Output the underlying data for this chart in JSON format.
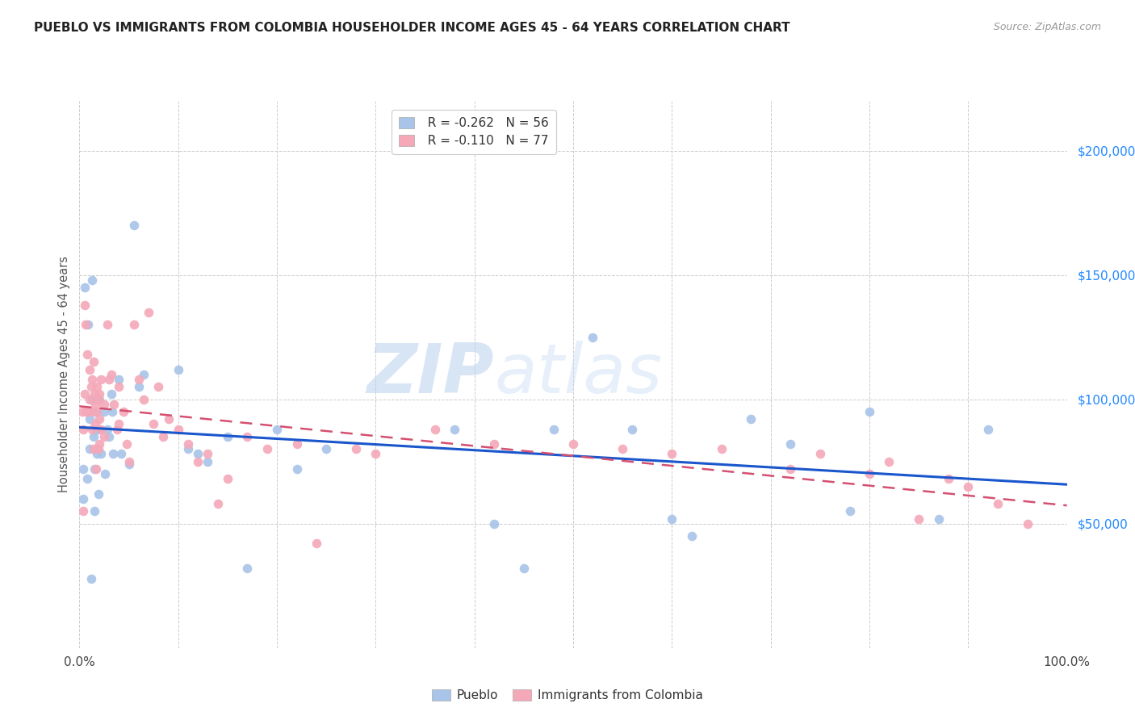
{
  "title": "PUEBLO VS IMMIGRANTS FROM COLOMBIA HOUSEHOLDER INCOME AGES 45 - 64 YEARS CORRELATION CHART",
  "source": "Source: ZipAtlas.com",
  "ylabel": "Householder Income Ages 45 - 64 years",
  "y_tick_values": [
    50000,
    100000,
    150000,
    200000
  ],
  "xlim": [
    0.0,
    1.0
  ],
  "ylim": [
    0,
    220000
  ],
  "legend_label1": "Pueblo",
  "legend_label2": "Immigrants from Colombia",
  "R1": "-0.262",
  "N1": "56",
  "R2": "-0.110",
  "N2": "77",
  "color_pueblo": "#a8c4e8",
  "color_colombia": "#f4a8b8",
  "color_line_pueblo": "#1a56cc",
  "color_line_colombia": "#d45070",
  "watermark_zip": "ZIP",
  "watermark_atlas": "atlas",
  "pueblo_x": [
    0.004,
    0.004,
    0.005,
    0.008,
    0.009,
    0.01,
    0.01,
    0.012,
    0.013,
    0.013,
    0.014,
    0.015,
    0.015,
    0.016,
    0.017,
    0.018,
    0.019,
    0.02,
    0.02,
    0.022,
    0.025,
    0.026,
    0.028,
    0.03,
    0.032,
    0.033,
    0.034,
    0.04,
    0.042,
    0.05,
    0.055,
    0.06,
    0.065,
    0.1,
    0.11,
    0.12,
    0.13,
    0.15,
    0.17,
    0.2,
    0.22,
    0.25,
    0.38,
    0.42,
    0.45,
    0.48,
    0.52,
    0.56,
    0.6,
    0.62,
    0.68,
    0.72,
    0.78,
    0.8,
    0.87,
    0.92
  ],
  "pueblo_y": [
    72000,
    60000,
    145000,
    68000,
    130000,
    92000,
    80000,
    28000,
    148000,
    100000,
    85000,
    72000,
    55000,
    95000,
    88000,
    78000,
    62000,
    100000,
    88000,
    78000,
    95000,
    70000,
    88000,
    85000,
    102000,
    95000,
    78000,
    108000,
    78000,
    74000,
    170000,
    105000,
    110000,
    112000,
    80000,
    78000,
    75000,
    85000,
    32000,
    88000,
    72000,
    80000,
    88000,
    50000,
    32000,
    88000,
    125000,
    88000,
    52000,
    45000,
    92000,
    82000,
    55000,
    95000,
    52000,
    88000
  ],
  "colombia_x": [
    0.003,
    0.004,
    0.004,
    0.005,
    0.005,
    0.006,
    0.007,
    0.008,
    0.009,
    0.01,
    0.01,
    0.012,
    0.012,
    0.013,
    0.013,
    0.014,
    0.014,
    0.015,
    0.016,
    0.016,
    0.017,
    0.018,
    0.018,
    0.019,
    0.019,
    0.02,
    0.02,
    0.02,
    0.022,
    0.022,
    0.025,
    0.025,
    0.028,
    0.03,
    0.032,
    0.035,
    0.038,
    0.04,
    0.04,
    0.045,
    0.048,
    0.05,
    0.055,
    0.06,
    0.065,
    0.07,
    0.075,
    0.08,
    0.085,
    0.09,
    0.1,
    0.11,
    0.12,
    0.13,
    0.14,
    0.15,
    0.17,
    0.19,
    0.22,
    0.24,
    0.28,
    0.3,
    0.36,
    0.42,
    0.5,
    0.55,
    0.6,
    0.65,
    0.72,
    0.75,
    0.8,
    0.82,
    0.85,
    0.88,
    0.9,
    0.93,
    0.96
  ],
  "colombia_y": [
    95000,
    88000,
    55000,
    138000,
    102000,
    130000,
    95000,
    118000,
    95000,
    112000,
    100000,
    105000,
    95000,
    108000,
    88000,
    115000,
    80000,
    102000,
    98000,
    90000,
    72000,
    105000,
    95000,
    100000,
    80000,
    102000,
    92000,
    82000,
    108000,
    88000,
    98000,
    85000,
    130000,
    108000,
    110000,
    98000,
    88000,
    105000,
    90000,
    95000,
    82000,
    75000,
    130000,
    108000,
    100000,
    135000,
    90000,
    105000,
    85000,
    92000,
    88000,
    82000,
    75000,
    78000,
    58000,
    68000,
    85000,
    80000,
    82000,
    42000,
    80000,
    78000,
    88000,
    82000,
    82000,
    80000,
    78000,
    80000,
    72000,
    78000,
    70000,
    75000,
    52000,
    68000,
    65000,
    58000,
    50000
  ]
}
